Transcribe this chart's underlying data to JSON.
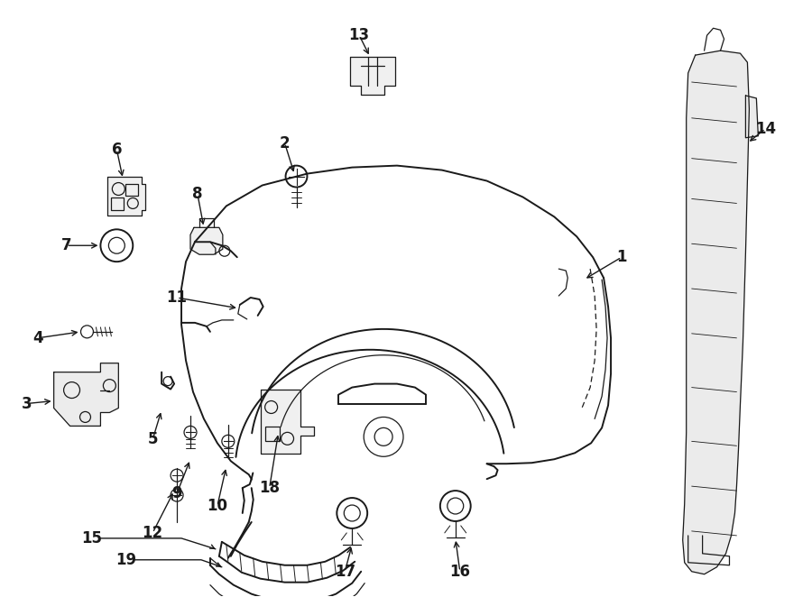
{
  "bg_color": "#ffffff",
  "line_color": "#1a1a1a",
  "text_color": "#1a1a1a",
  "label_fontsize": 12,
  "fig_w": 9.0,
  "fig_h": 6.62,
  "dpi": 100
}
